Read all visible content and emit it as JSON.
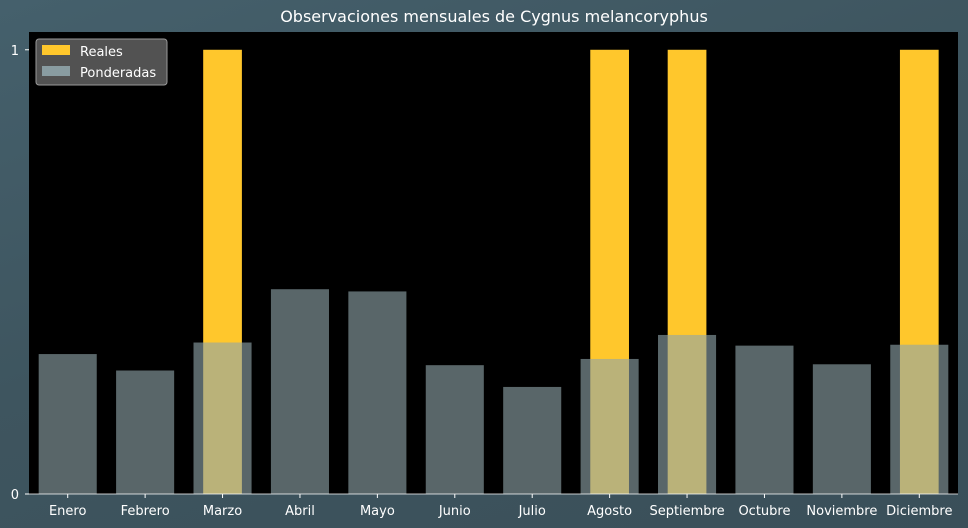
{
  "chart_data": {
    "type": "bar",
    "title": "Observaciones mensuales de Cygnus melancoryphus",
    "categories": [
      "Enero",
      "Febrero",
      "Marzo",
      "Abril",
      "Mayo",
      "Junio",
      "Julio",
      "Agosto",
      "Septiembre",
      "Octubre",
      "Noviembre",
      "Diciembre"
    ],
    "series": [
      {
        "name": "Reales",
        "color": "#ffc72c",
        "values": [
          0,
          0,
          1,
          0,
          0,
          0,
          0,
          1,
          1,
          0,
          0,
          1
        ]
      },
      {
        "name": "Ponderadas",
        "color": "#8fa4aa",
        "values": [
          0.315,
          0.278,
          0.341,
          0.461,
          0.456,
          0.29,
          0.241,
          0.304,
          0.358,
          0.334,
          0.292,
          0.336
        ]
      }
    ],
    "yticks": [
      "0",
      "1"
    ],
    "ylim": [
      0,
      1.04
    ],
    "xlabel": "",
    "ylabel": "",
    "legend_position": "top-left",
    "grid": false,
    "plot_background": "#000000"
  }
}
